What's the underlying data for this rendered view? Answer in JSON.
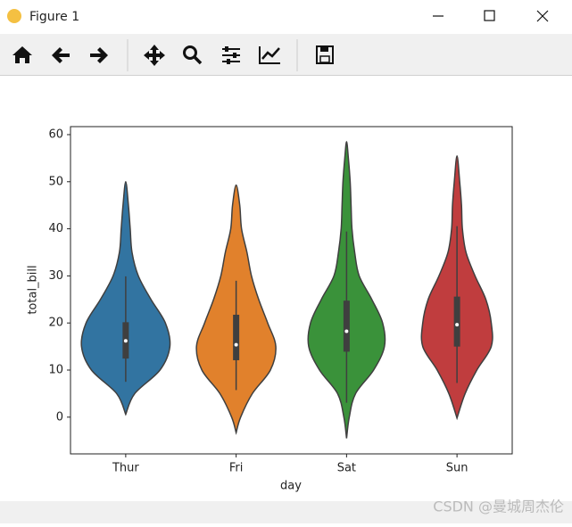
{
  "window": {
    "title": "Figure 1"
  },
  "chart_data": {
    "type": "violin",
    "x_label": "day",
    "y_label": "total_bill",
    "categories": [
      "Thur",
      "Fri",
      "Sat",
      "Sun"
    ],
    "ylim": [
      -7.8,
      61.7
    ],
    "yticks": [
      0,
      10,
      20,
      30,
      40,
      50,
      60
    ],
    "violins": [
      {
        "color": "#3274a1",
        "whislo": 7.51,
        "q1": 12.44,
        "median": 16.2,
        "q3": 20.16,
        "whishi": 29.9,
        "density_y": [
          0.6,
          5,
          10,
          15,
          20,
          25,
          30,
          35,
          40,
          45,
          50
        ],
        "density": [
          0,
          10,
          38,
          49,
          44,
          28,
          14,
          7,
          5,
          3,
          0
        ]
      },
      {
        "color": "#e1812c",
        "whislo": 5.75,
        "q1": 12.09,
        "median": 15.38,
        "q3": 21.75,
        "whishi": 28.97,
        "density_y": [
          -3.3,
          0,
          5,
          10,
          15,
          20,
          25,
          30,
          35,
          40,
          45,
          49.3
        ],
        "density": [
          0,
          5,
          18,
          38,
          44,
          35,
          25,
          17,
          12,
          6,
          4,
          0
        ]
      },
      {
        "color": "#3a923a",
        "whislo": 3.07,
        "q1": 13.9,
        "median": 18.24,
        "q3": 24.74,
        "whishi": 39.42,
        "density_y": [
          -4.5,
          0,
          5,
          10,
          15,
          20,
          25,
          30,
          35,
          40,
          45,
          50,
          55,
          58.5
        ],
        "density": [
          0,
          3,
          10,
          30,
          42,
          40,
          28,
          14,
          9,
          6,
          5,
          4,
          2,
          0
        ]
      },
      {
        "color": "#c03d3e",
        "whislo": 7.25,
        "q1": 14.99,
        "median": 19.63,
        "q3": 25.6,
        "whishi": 40.55,
        "density_y": [
          -0.2,
          5,
          10,
          15,
          20,
          25,
          30,
          35,
          40,
          45,
          50,
          55.5
        ],
        "density": [
          0,
          9,
          22,
          38,
          38,
          32,
          20,
          10,
          6,
          5,
          3,
          0
        ]
      }
    ]
  },
  "watermark": "CSDN @曼城周杰伦"
}
